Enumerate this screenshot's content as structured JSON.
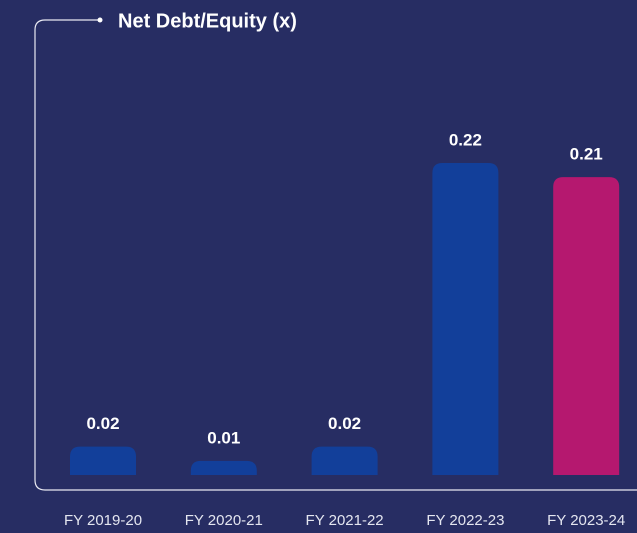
{
  "chart_data": {
    "type": "bar",
    "title": "Net Debt/Equity (x)",
    "categories": [
      "FY 2019-20",
      "FY 2020-21",
      "FY 2021-22",
      "FY 2022-23",
      "FY 2023-24"
    ],
    "values": [
      0.02,
      0.01,
      0.02,
      0.22,
      0.21
    ],
    "colors": [
      "#123f9a",
      "#123f9a",
      "#123f9a",
      "#123f9a",
      "#b5186f"
    ]
  }
}
